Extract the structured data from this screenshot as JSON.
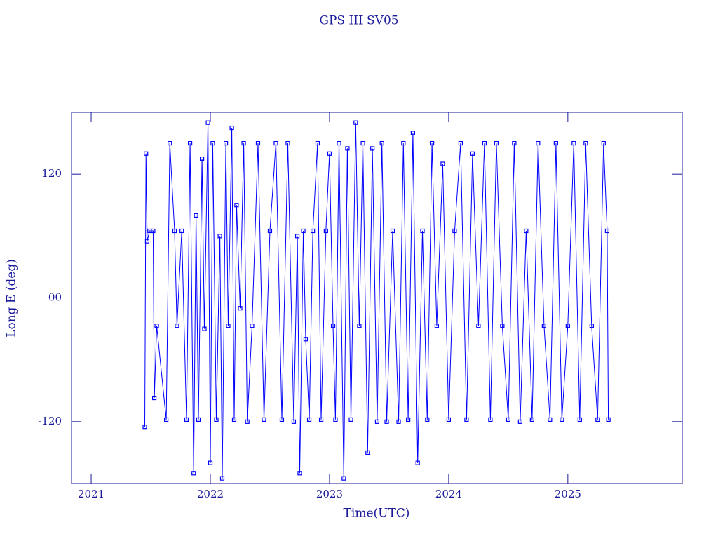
{
  "chart_data": {
    "type": "line",
    "title": "GPS III SV05",
    "xlabel": "Time(UTC)",
    "ylabel": "Long E (deg)",
    "x": [
      2021.45,
      2021.46,
      2021.47,
      2021.49,
      2021.52,
      2021.53,
      2021.55,
      2021.63,
      2021.66,
      2021.7,
      2021.72,
      2021.76,
      2021.8,
      2021.83,
      2021.86,
      2021.88,
      2021.9,
      2021.93,
      2021.95,
      2021.98,
      2022.0,
      2022.02,
      2022.05,
      2022.08,
      2022.1,
      2022.13,
      2022.15,
      2022.18,
      2022.2,
      2022.22,
      2022.25,
      2022.28,
      2022.31,
      2022.35,
      2022.4,
      2022.45,
      2022.5,
      2022.55,
      2022.6,
      2022.65,
      2022.7,
      2022.73,
      2022.75,
      2022.78,
      2022.8,
      2022.83,
      2022.86,
      2022.9,
      2022.93,
      2022.97,
      2023.0,
      2023.03,
      2023.05,
      2023.08,
      2023.12,
      2023.15,
      2023.18,
      2023.22,
      2023.25,
      2023.28,
      2023.32,
      2023.36,
      2023.4,
      2023.44,
      2023.48,
      2023.53,
      2023.58,
      2023.62,
      2023.66,
      2023.7,
      2023.74,
      2023.78,
      2023.82,
      2023.86,
      2023.9,
      2023.95,
      2024.0,
      2024.05,
      2024.1,
      2024.15,
      2024.2,
      2024.25,
      2024.3,
      2024.35,
      2024.4,
      2024.45,
      2024.5,
      2024.55,
      2024.6,
      2024.65,
      2024.7,
      2024.75,
      2024.8,
      2024.85,
      2024.9,
      2024.95,
      2025.0,
      2025.05,
      2025.1,
      2025.15,
      2025.2,
      2025.25,
      2025.3,
      2025.33,
      2025.34
    ],
    "series": [
      {
        "color": "#0000ff",
        "values": [
          -125,
          140,
          55,
          65,
          65,
          -97,
          -27,
          -118,
          150,
          65,
          -27,
          65,
          -118,
          150,
          -170,
          80,
          -118,
          135,
          -30,
          170,
          -160,
          150,
          -118,
          60,
          -175,
          150,
          -27,
          165,
          -118,
          90,
          -10,
          150,
          -120,
          -27,
          150,
          -118,
          65,
          150,
          -118,
          150,
          -120,
          60,
          -170,
          65,
          -40,
          -118,
          65,
          150,
          -118,
          65,
          140,
          -27,
          -118,
          150,
          -175,
          145,
          -118,
          170,
          -27,
          150,
          -150,
          145,
          -120,
          150,
          -120,
          65,
          -120,
          150,
          -118,
          160,
          -160,
          65,
          -118,
          150,
          -27,
          130,
          -118,
          65,
          150,
          -118,
          140,
          -27,
          150,
          -118,
          150,
          -27,
          -118,
          150,
          -120,
          65,
          -118,
          150,
          -27,
          -118,
          150,
          -118,
          -27,
          150,
          -118,
          150,
          -27,
          -118,
          150,
          65,
          -118
        ]
      }
    ],
    "xlim": [
      2020.835,
      2025.96
    ],
    "xticks": [
      2021,
      2022,
      2023,
      2024,
      2025
    ],
    "ylim": [
      -180,
      180
    ],
    "yticks": [
      120,
      {
        "value": 0,
        "label": "00"
      },
      -120
    ]
  }
}
